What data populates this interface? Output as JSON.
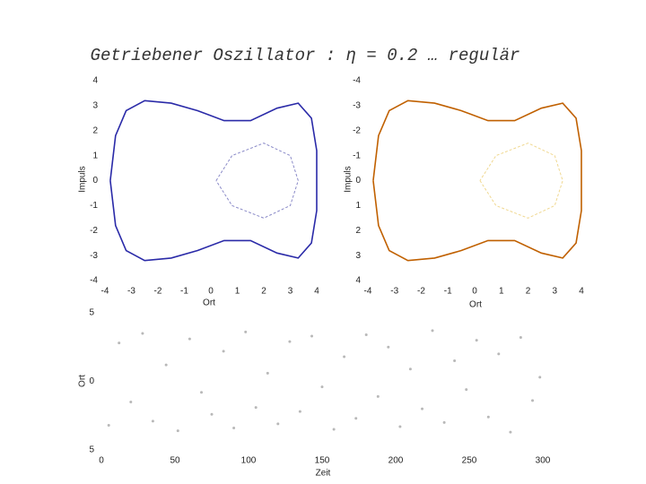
{
  "title": "Getriebener Oszillator : η = 0.2 … regulär",
  "chart_data": [
    {
      "type": "line",
      "xlabel": "Ort",
      "ylabel": "Impuls",
      "xlim": [
        -4,
        4
      ],
      "ylim": [
        -4,
        4
      ],
      "xticks": [
        -4,
        -3,
        -2,
        -1,
        0,
        1,
        2,
        3,
        4
      ],
      "yticks": [
        -4,
        -3,
        -2,
        -1,
        0,
        1,
        2,
        3,
        4
      ],
      "series": [
        {
          "color": "#2a2aa8",
          "x": [
            -3.8,
            -3.6,
            -3.2,
            -2.5,
            -1.5,
            -0.5,
            0.5,
            1.5,
            2.5,
            3.3,
            3.8,
            4.0,
            4.0,
            3.8,
            3.3,
            2.5,
            1.5,
            0.5,
            -0.5,
            -1.5,
            -2.5,
            -3.2,
            -3.6,
            -3.8
          ],
          "values": [
            0,
            1.8,
            2.8,
            3.2,
            3.1,
            2.8,
            2.4,
            2.4,
            2.9,
            3.1,
            2.5,
            1.2,
            -1.2,
            -2.5,
            -3.1,
            -2.9,
            -2.4,
            -2.4,
            -2.8,
            -3.1,
            -3.2,
            -2.8,
            -1.8,
            0
          ]
        },
        {
          "color": "#8a8ac8",
          "x": [
            0.2,
            0.8,
            2.0,
            3.0,
            3.3,
            3.0,
            2.0,
            0.8,
            0.2
          ],
          "values": [
            0,
            1.0,
            1.5,
            1.0,
            0,
            -1.0,
            -1.5,
            -1.0,
            0
          ]
        }
      ]
    },
    {
      "type": "line",
      "xlabel": "Ort",
      "ylabel": "Impuls",
      "xlim": [
        -4,
        4
      ],
      "ylim": [
        4,
        -4
      ],
      "xticks": [
        -4,
        -3,
        -2,
        -1,
        0,
        1,
        2,
        3,
        4
      ],
      "yticks": [
        -4,
        -3,
        -2,
        -1,
        0,
        1,
        2,
        3,
        4
      ],
      "series": [
        {
          "color": "#c06000",
          "x": [
            -3.8,
            -3.6,
            -3.2,
            -2.5,
            -1.5,
            -0.5,
            0.5,
            1.5,
            2.5,
            3.3,
            3.8,
            4.0,
            4.0,
            3.8,
            3.3,
            2.5,
            1.5,
            0.5,
            -0.5,
            -1.5,
            -2.5,
            -3.2,
            -3.6,
            -3.8
          ],
          "values": [
            0,
            1.8,
            2.8,
            3.2,
            3.1,
            2.8,
            2.4,
            2.4,
            2.9,
            3.1,
            2.5,
            1.2,
            -1.2,
            -2.5,
            -3.1,
            -2.9,
            -2.4,
            -2.4,
            -2.8,
            -3.1,
            -3.2,
            -2.8,
            -1.8,
            0
          ]
        },
        {
          "color": "#f0d890",
          "x": [
            0.2,
            0.8,
            2.0,
            3.0,
            3.3,
            3.0,
            2.0,
            0.8,
            0.2
          ],
          "values": [
            0,
            1.0,
            1.5,
            1.0,
            0,
            -1.0,
            -1.5,
            -1.0,
            0
          ]
        }
      ]
    },
    {
      "type": "scatter",
      "xlabel": "Zeit",
      "ylabel": "Ort",
      "color": "#b8b8b8",
      "xlim": [
        0,
        300
      ],
      "ylim": [
        5,
        -5
      ],
      "xticks": [
        0,
        50,
        100,
        150,
        200,
        250,
        300
      ],
      "yticks": [
        {
          "value": 5,
          "label": "5"
        },
        0,
        {
          "value": -5,
          "label": "5"
        }
      ],
      "x": [
        5,
        12,
        20,
        28,
        35,
        44,
        52,
        60,
        68,
        75,
        83,
        90,
        98,
        105,
        113,
        120,
        128,
        135,
        143,
        150,
        158,
        165,
        173,
        180,
        188,
        195,
        203,
        210,
        218,
        225,
        233,
        240,
        248,
        255,
        263,
        270,
        278,
        285,
        293,
        298
      ],
      "values": [
        3.2,
        -2.8,
        1.5,
        -3.5,
        2.9,
        -1.2,
        3.6,
        -3.1,
        0.8,
        2.4,
        -2.2,
        3.4,
        -3.6,
        1.9,
        -0.6,
        3.1,
        -2.9,
        2.2,
        -3.3,
        0.4,
        3.5,
        -1.8,
        2.7,
        -3.4,
        1.1,
        -2.5,
        3.3,
        -0.9,
        2.0,
        -3.7,
        3.0,
        -1.5,
        0.6,
        -3.0,
        2.6,
        -2.0,
        3.7,
        -3.2,
        1.4,
        -0.3
      ]
    }
  ]
}
